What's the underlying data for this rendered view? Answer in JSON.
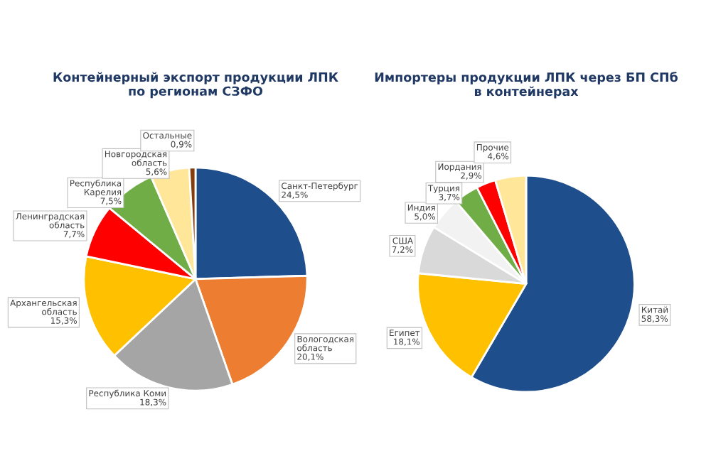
{
  "chart_data": [
    {
      "type": "pie",
      "title": "Контейнерный экспорт продукции ЛПК\nпо регионам СЗФО",
      "categories": [
        "Санкт-Петербург",
        "Вологодская область",
        "Республика Коми",
        "Архангельская область",
        "Ленинградская область",
        "Республика Карелия",
        "Новгородская область",
        "Остальные"
      ],
      "values": [
        24.5,
        20.1,
        18.3,
        15.3,
        7.7,
        7.5,
        5.6,
        0.9
      ],
      "value_labels": [
        "24,5%",
        "20,1%",
        "18,3%",
        "15,3%",
        "7,7%",
        "7,5%",
        "5,6%",
        "0,9%"
      ],
      "colors": [
        "#1f4e8c",
        "#ed7d31",
        "#a5a5a5",
        "#ffc000",
        "#ff0000",
        "#70ad47",
        "#ffe699",
        "#843c0c"
      ]
    },
    {
      "type": "pie",
      "title": "Импортеры продукции ЛПК через БП СПб\nв контейнерах",
      "categories": [
        "Китай",
        "Египет",
        "США",
        "Индия",
        "Турция",
        "Иордания",
        "Прочие"
      ],
      "values": [
        58.3,
        18.1,
        7.2,
        5.0,
        3.7,
        2.9,
        4.6
      ],
      "value_labels": [
        "58,3%",
        "18,1%",
        "7,2%",
        "5,0%",
        "3,7%",
        "2,9%",
        "4,6%"
      ],
      "colors": [
        "#1f4e8c",
        "#ffc000",
        "#d9d9d9",
        "#f2f2f2",
        "#70ad47",
        "#ff0000",
        "#ffe699"
      ]
    }
  ]
}
